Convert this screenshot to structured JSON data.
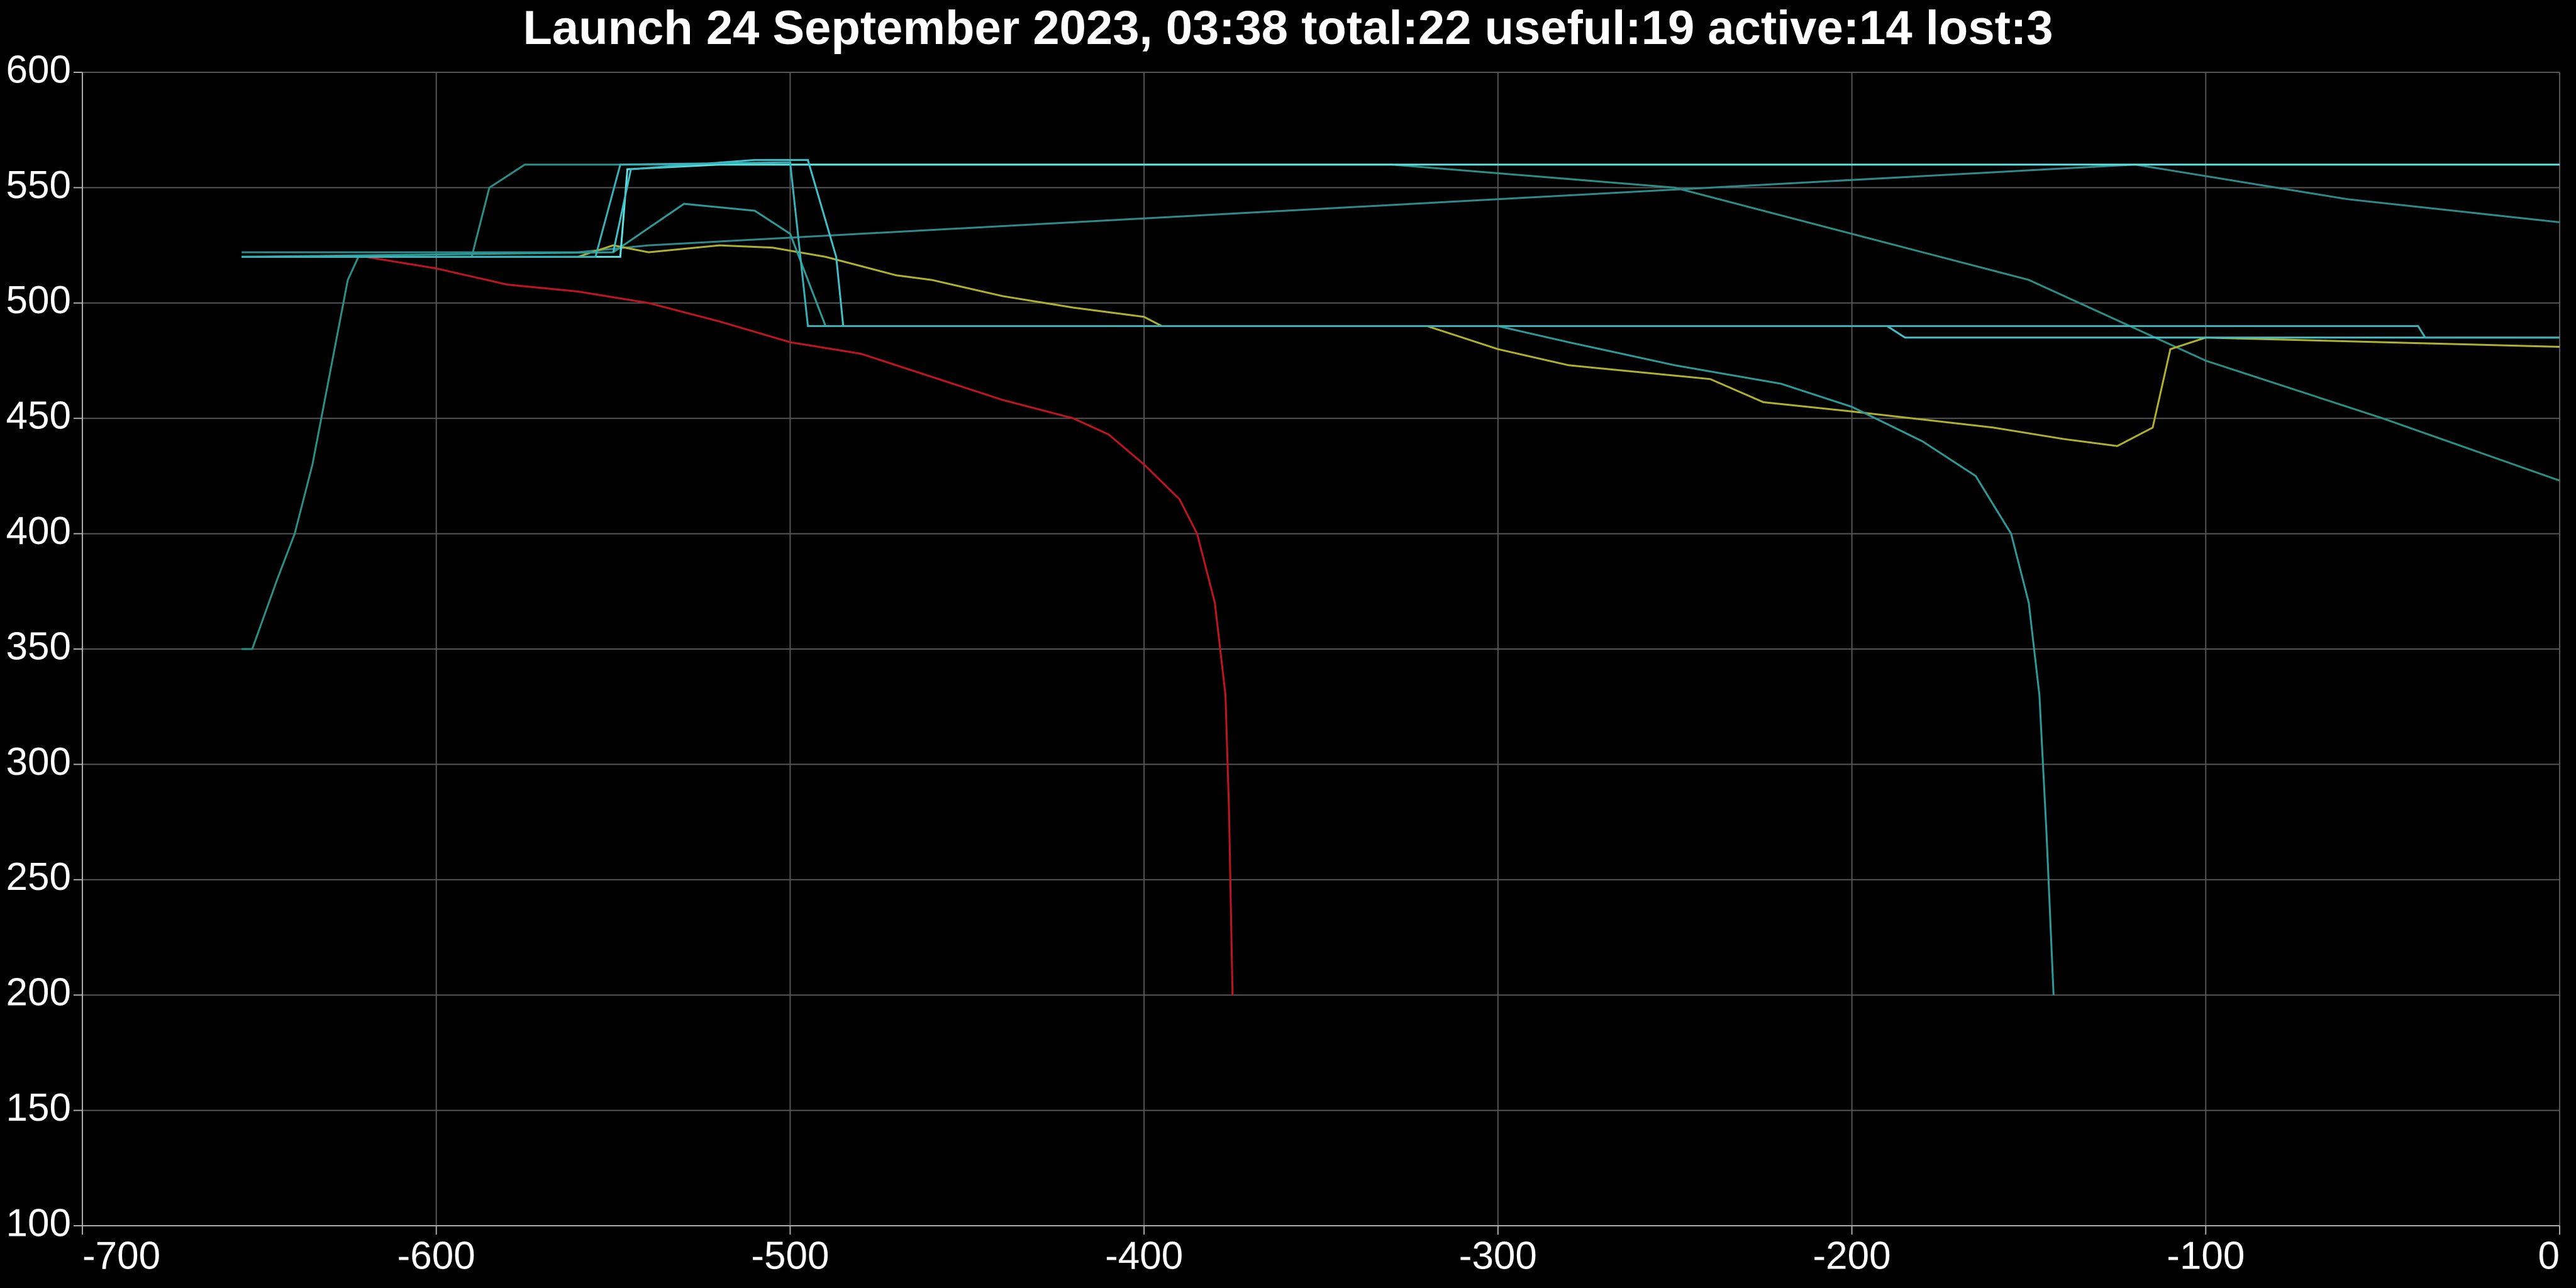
{
  "chart_data": {
    "type": "line",
    "title": "Launch 24 September 2023, 03:38 total:22 useful:19 active:14 lost:3",
    "xlim": [
      -700,
      0
    ],
    "ylim": [
      100,
      600
    ],
    "xticks": [
      -700,
      -600,
      -500,
      -400,
      -300,
      -200,
      -100,
      0
    ],
    "yticks": [
      100,
      150,
      200,
      250,
      300,
      350,
      400,
      450,
      500,
      550,
      600
    ],
    "grid": true,
    "series": [
      {
        "color": "#c0141e",
        "x": [
          -620,
          -600,
          -580,
          -560,
          -540,
          -520,
          -500,
          -480,
          -460,
          -440,
          -420,
          -410,
          -400,
          -390,
          -385,
          -380,
          -377,
          -376,
          -375
        ],
        "values": [
          520,
          515,
          508,
          505,
          500,
          492,
          483,
          478,
          468,
          458,
          450,
          443,
          430,
          415,
          400,
          370,
          330,
          280,
          200
        ]
      },
      {
        "color": "#2a8f86",
        "x": [
          -655,
          -652,
          -645,
          -640,
          -635,
          -630,
          -625,
          -622,
          -590,
          -585,
          -580,
          -575,
          -330,
          -250,
          -200,
          -150,
          -100,
          -50,
          0
        ],
        "values": [
          350,
          350,
          380,
          400,
          430,
          470,
          510,
          520,
          520,
          550,
          555,
          560,
          560,
          550,
          530,
          510,
          475,
          450,
          423
        ]
      },
      {
        "color": "#2f8a8c",
        "x": [
          -655,
          -600,
          -560,
          -540,
          -120,
          -60,
          0
        ],
        "values": [
          522,
          522,
          522,
          525,
          560,
          545,
          535
        ]
      },
      {
        "color": "#b0b030",
        "x": [
          -655,
          -560,
          -550,
          -540,
          -520,
          -505,
          -490,
          -470,
          -460,
          -440,
          -420,
          -400,
          -395,
          -320,
          -300,
          -280,
          -240,
          -225,
          -200,
          -160,
          -140,
          -125,
          -115,
          -110,
          -100,
          0
        ],
        "values": [
          520,
          520,
          525,
          522,
          525,
          524,
          520,
          512,
          510,
          503,
          498,
          494,
          490,
          490,
          480,
          473,
          467,
          457,
          453,
          446,
          441,
          438,
          446,
          480,
          485,
          481
        ]
      },
      {
        "color": "#2b9a98",
        "x": [
          -655,
          -550,
          -530,
          -510,
          -500,
          -490,
          -300,
          -280,
          -250,
          -220,
          -200,
          -180,
          -165,
          -155,
          -150,
          -147,
          -145,
          -143
        ],
        "values": [
          520,
          522,
          543,
          540,
          530,
          490,
          490,
          483,
          473,
          465,
          455,
          440,
          425,
          400,
          370,
          330,
          270,
          200
        ]
      },
      {
        "color": "#5ce0e0",
        "x": [
          -655,
          -548,
          -546,
          -520,
          0
        ],
        "values": [
          520,
          520,
          558,
          560,
          560
        ]
      },
      {
        "color": "#40c0c8",
        "x": [
          -550,
          -545,
          -510,
          -495,
          -487,
          -485,
          -190,
          -185,
          0
        ],
        "values": [
          522,
          558,
          562,
          562,
          520,
          490,
          490,
          485,
          485
        ]
      },
      {
        "color": "#38b0b8",
        "x": [
          -655,
          -555,
          -548,
          -500,
          -495,
          -40,
          -38,
          0
        ],
        "values": [
          520,
          520,
          560,
          561,
          490,
          490,
          485,
          485
        ]
      }
    ]
  }
}
